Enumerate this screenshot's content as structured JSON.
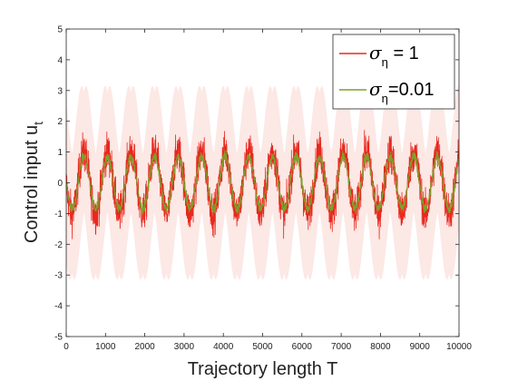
{
  "chart_data": {
    "type": "line",
    "xlabel": "Trajectory length T",
    "ylabel": "Control input u",
    "ylabel_subscript": "t",
    "xlim": [
      0,
      10000
    ],
    "ylim": [
      -5,
      5
    ],
    "xticks": [
      0,
      1000,
      2000,
      3000,
      4000,
      5000,
      6000,
      7000,
      8000,
      9000,
      10000
    ],
    "yticks": [
      -5,
      -4,
      -3,
      -2,
      -1,
      0,
      1,
      2,
      3,
      4,
      5
    ],
    "grid": false,
    "legend_position": "top-right",
    "oscillation": {
      "period": 600,
      "start": 0,
      "end": 10000
    },
    "series": [
      {
        "name": "σ_η = 1",
        "legend_symbol": "σ",
        "legend_subscript": "η",
        "legend_suffix": " = 1",
        "color": "#e8281e",
        "band_color": "#f9d5d0",
        "amplitude": 1.0,
        "noise": 0.45,
        "band_halfwidth": 2.6
      },
      {
        "name": "σ_η = 0.01",
        "legend_symbol": "σ",
        "legend_subscript": "η",
        "legend_suffix": "=0.01",
        "color": "#7ea02a",
        "amplitude": 0.85,
        "noise": 0.12
      }
    ]
  }
}
